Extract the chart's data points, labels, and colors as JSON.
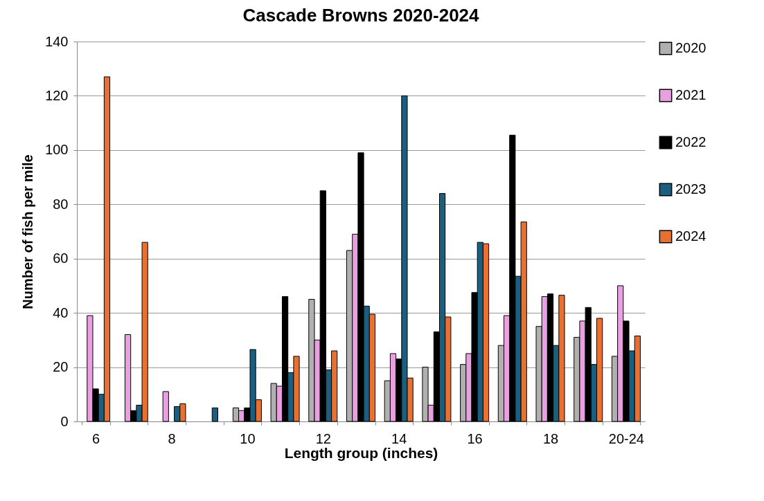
{
  "chart_data": {
    "type": "bar",
    "title": "Cascade Browns 2020-2024",
    "xlabel": "Length  group  (inches)",
    "ylabel": "Number  of  fish per mile",
    "categories": [
      "6",
      null,
      "8",
      null,
      "10",
      null,
      "12",
      null,
      "14",
      null,
      "16",
      null,
      "18",
      null,
      "20-24"
    ],
    "series": [
      {
        "name": "2020",
        "color": "#b0b0b0",
        "values": [
          null,
          null,
          null,
          null,
          5,
          14,
          45,
          63,
          15,
          20,
          21,
          28,
          35,
          31,
          24
        ]
      },
      {
        "name": "2021",
        "color": "#e8a0e0",
        "values": [
          39,
          32,
          11,
          null,
          4,
          13,
          30,
          69,
          25,
          6,
          25,
          39,
          46,
          37,
          50
        ]
      },
      {
        "name": "2022",
        "color": "#000000",
        "values": [
          12,
          4,
          null,
          null,
          5,
          46,
          85,
          99,
          23,
          33,
          47.5,
          105.5,
          47,
          42,
          37
        ]
      },
      {
        "name": "2023",
        "color": "#1a5e80",
        "values": [
          10,
          6,
          5.5,
          5,
          26.5,
          18,
          19,
          42.5,
          120,
          84,
          66,
          53.5,
          28,
          21,
          26
        ]
      },
      {
        "name": "2024",
        "color": "#e87030",
        "values": [
          127,
          66,
          6.5,
          null,
          8,
          24,
          26,
          39.5,
          16,
          38.5,
          65.5,
          73.5,
          46.5,
          38,
          31.5
        ]
      }
    ],
    "ylim": [
      0,
      140
    ],
    "yticks": [
      0,
      20,
      40,
      60,
      80,
      100,
      120,
      140
    ],
    "grid": "y",
    "legend": "right"
  }
}
